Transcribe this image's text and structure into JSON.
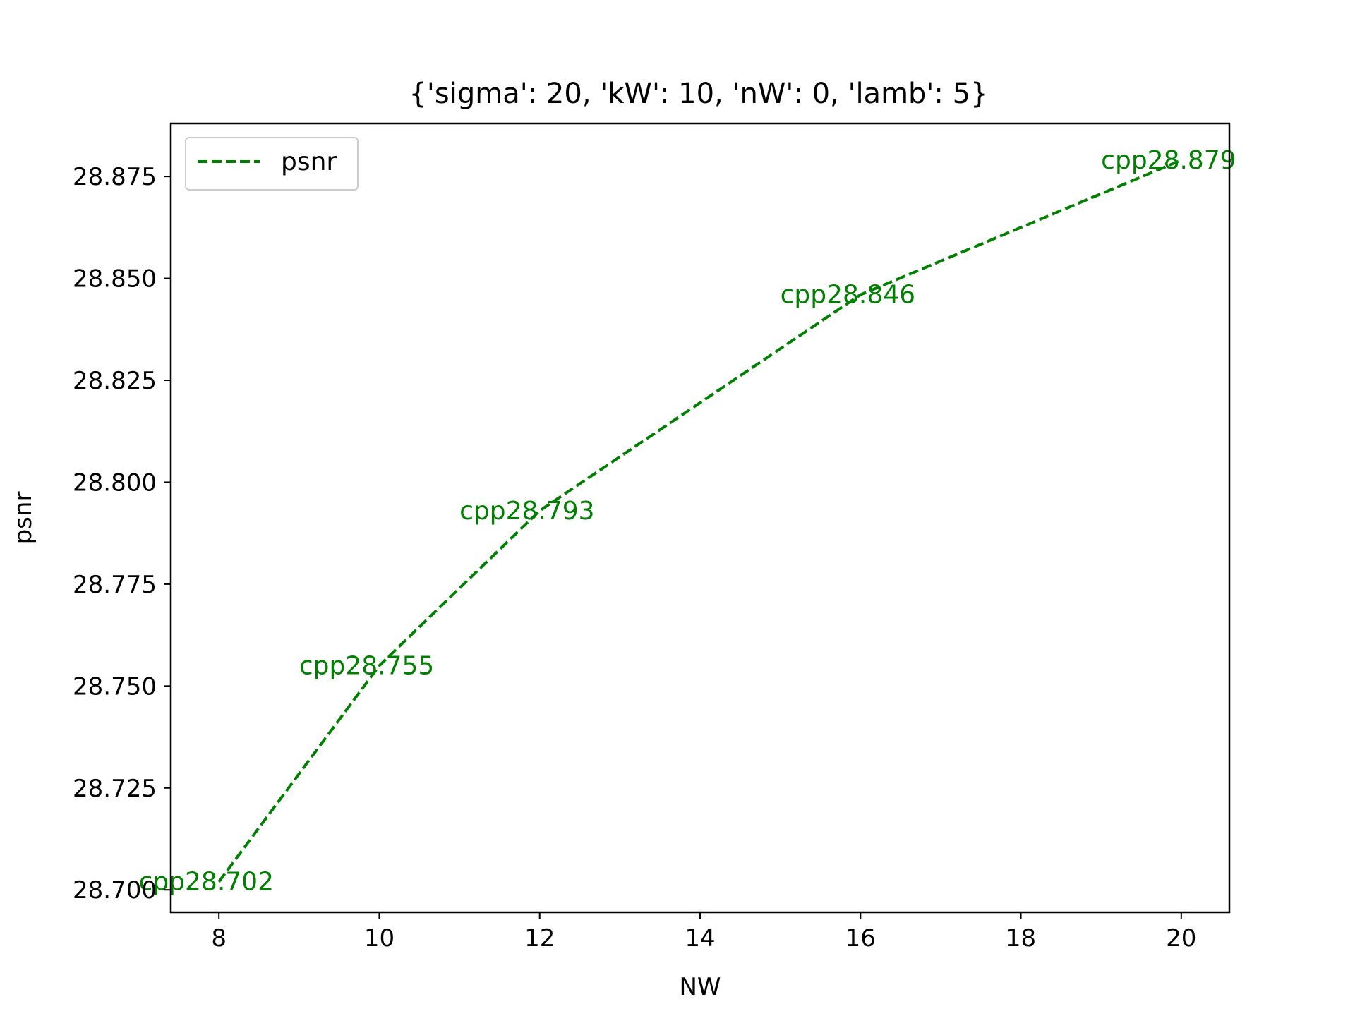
{
  "chart_data": {
    "type": "line",
    "title": "{'sigma': 20, 'kW': 10, 'nW': 0, 'lamb': 5}",
    "xlabel": "NW",
    "ylabel": "psnr",
    "xlim": [
      7.4,
      20.6
    ],
    "ylim": [
      28.6945,
      28.888
    ],
    "xticks": [
      8,
      10,
      12,
      14,
      16,
      18,
      20
    ],
    "yticks": [
      28.7,
      28.725,
      28.75,
      28.775,
      28.8,
      28.825,
      28.85,
      28.875
    ],
    "xtick_labels": [
      "8",
      "10",
      "12",
      "14",
      "16",
      "18",
      "20"
    ],
    "ytick_labels": [
      "28.700",
      "28.725",
      "28.750",
      "28.775",
      "28.800",
      "28.825",
      "28.850",
      "28.875"
    ],
    "grid": false,
    "legend": {
      "position": "upper-left",
      "entries": [
        "psnr"
      ]
    },
    "series": [
      {
        "name": "psnr",
        "color": "#008000",
        "style": "dashed",
        "x": [
          8,
          10,
          12,
          16,
          20
        ],
        "y": [
          28.702,
          28.755,
          28.793,
          28.846,
          28.879
        ]
      }
    ],
    "annotations": [
      {
        "text": "cpp28.702",
        "x": 8,
        "y": 28.702
      },
      {
        "text": "cpp28.755",
        "x": 10,
        "y": 28.755
      },
      {
        "text": "cpp28.793",
        "x": 12,
        "y": 28.793
      },
      {
        "text": "cpp28.846",
        "x": 16,
        "y": 28.846
      },
      {
        "text": "cpp28.879",
        "x": 20,
        "y": 28.879
      }
    ]
  }
}
